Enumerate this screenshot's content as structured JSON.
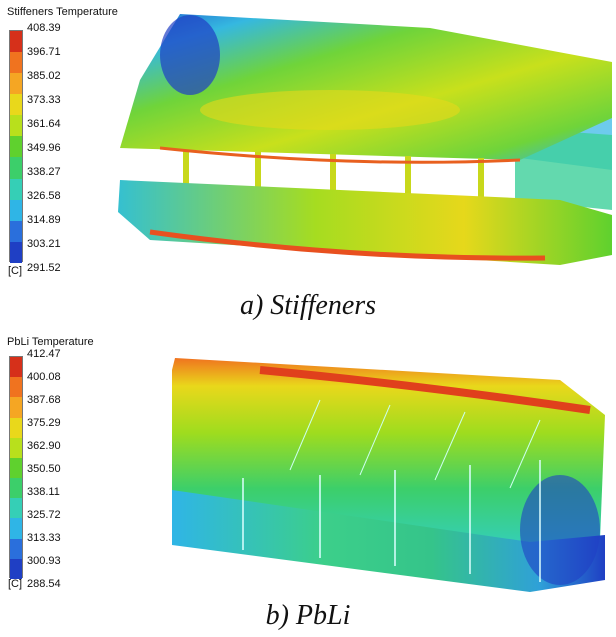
{
  "panel_a": {
    "legend_title": "Stiffeners Temperature",
    "legend_values": [
      "408.39",
      "396.71",
      "385.02",
      "373.33",
      "361.64",
      "349.96",
      "338.27",
      "326.58",
      "314.89",
      "303.21",
      "291.52"
    ],
    "unit": "[C]",
    "caption": "a) Stiffeners"
  },
  "panel_b": {
    "legend_title": "PbLi Temperature",
    "legend_values": [
      "412.47",
      "400.08",
      "387.68",
      "375.29",
      "362.90",
      "350.50",
      "338.11",
      "325.72",
      "313.33",
      "300.93",
      "288.54"
    ],
    "unit": "[C]",
    "caption": "b) PbLi"
  },
  "colormap": [
    "#d6301a",
    "#f0731f",
    "#f5a623",
    "#e9d81b",
    "#b8e01c",
    "#5fd12e",
    "#3ccf6a",
    "#35cfb6",
    "#2fb5e6",
    "#2a6fdc",
    "#1f3fc4"
  ]
}
